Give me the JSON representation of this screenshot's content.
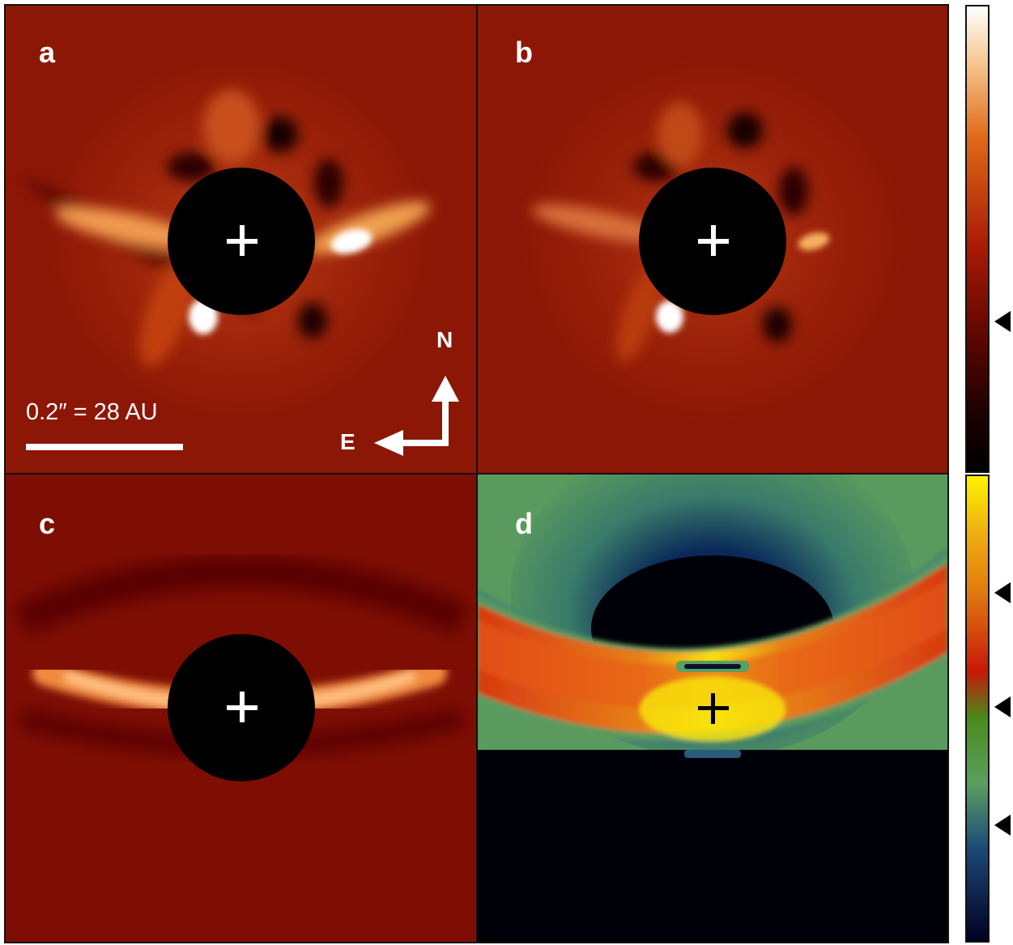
{
  "panels": {
    "a": {
      "label": "a"
    },
    "b": {
      "label": "b"
    },
    "c": {
      "label": "c"
    },
    "d": {
      "label": "d"
    }
  },
  "scale_bar": {
    "text": "0.2″ = 28 AU"
  },
  "compass": {
    "north": "N",
    "east": "E"
  },
  "colors": {
    "background_red": "#8c1706",
    "dark_red": "#6e0a02",
    "bright_orange": "#ffb055",
    "mask": "#000000",
    "map_green": "#5a9a5e",
    "map_blue": "#0b2e5a",
    "map_yellow": "#f0e000"
  },
  "colorbar": {
    "upper_scale": [
      "#ffffff",
      "#f6c890",
      "#e06a18",
      "#a81a04",
      "#5a0500",
      "#000000"
    ],
    "lower_scale": [
      "#fff200",
      "#e07a10",
      "#c81808",
      "#4a8a1a",
      "#5aa060",
      "#1c4a78",
      "#000020"
    ],
    "marker_count": 4
  }
}
